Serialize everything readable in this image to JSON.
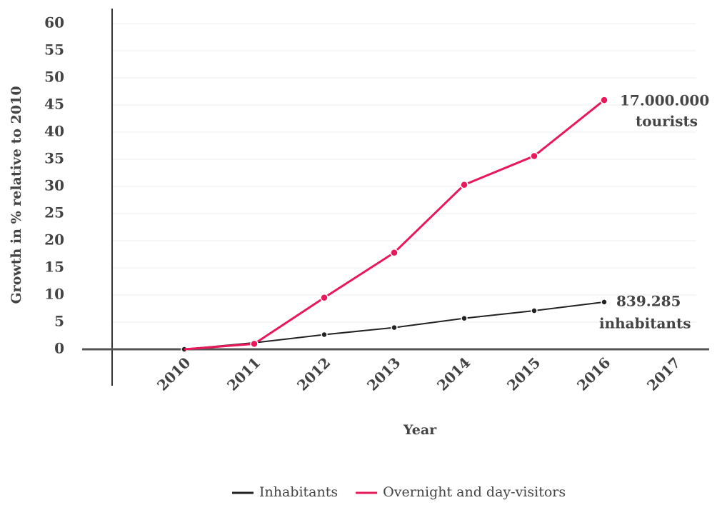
{
  "chart_data": {
    "type": "line",
    "xlabel": "Year",
    "ylabel": "Growth in % relative to 2010",
    "categories": [
      "2010",
      "2011",
      "2012",
      "2013",
      "2014",
      "2015",
      "2016",
      "2017"
    ],
    "series": [
      {
        "name": "Inhabitants",
        "color": "#222222",
        "values": [
          0,
          1.2,
          2.7,
          4,
          5.7,
          7.1,
          8.7,
          null
        ]
      },
      {
        "name": "Overnight and day-visitors",
        "color": "#e8185a",
        "values": [
          0,
          1,
          9.5,
          17.8,
          30.3,
          35.6,
          45.9,
          null
        ]
      }
    ],
    "ylim": [
      0,
      60
    ],
    "yticks": [
      0,
      5,
      10,
      15,
      20,
      25,
      30,
      35,
      40,
      45,
      50,
      55,
      60
    ],
    "grid": true,
    "annotations": [
      "17.000.000",
      "tourists",
      "839.285",
      "inhabitants"
    ]
  }
}
